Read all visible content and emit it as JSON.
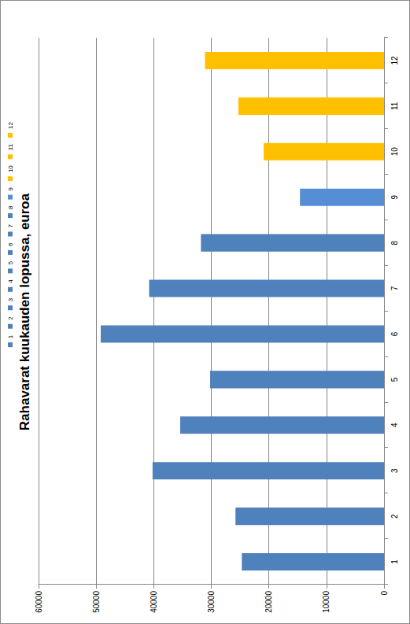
{
  "chart_data": {
    "type": "bar",
    "title": "Rahavarat kuukauden lopussa, euroa",
    "categories": [
      "1",
      "2",
      "3",
      "4",
      "5",
      "6",
      "7",
      "8",
      "9",
      "10",
      "11",
      "12"
    ],
    "values": [
      24700,
      25800,
      40200,
      35400,
      30200,
      49200,
      40800,
      31800,
      14600,
      20900,
      25300,
      31100
    ],
    "colors": [
      "#4f81bd",
      "#4f81bd",
      "#4f81bd",
      "#4f81bd",
      "#4f81bd",
      "#4f81bd",
      "#4f81bd",
      "#4f81bd",
      "#558ed5",
      "#ffc000",
      "#ffc000",
      "#ffc000"
    ],
    "ylim": [
      0,
      60000
    ],
    "yticks": [
      0,
      10000,
      20000,
      30000,
      40000,
      50000,
      60000
    ],
    "grid": true,
    "legend": "top",
    "orientation": "horizontal"
  }
}
